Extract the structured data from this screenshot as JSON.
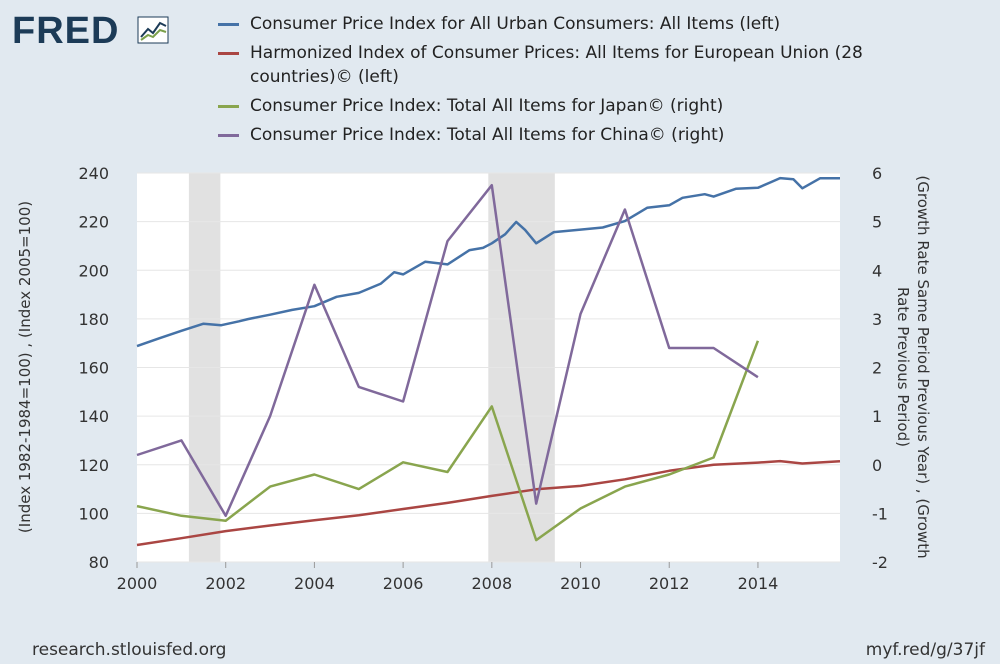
{
  "brand": {
    "logo_text": "FRED"
  },
  "footer": {
    "source": "research.stlouisfed.org",
    "link": "myf.red/g/37jf"
  },
  "colors": {
    "background": "#e1e9f0",
    "plot_bg": "#ffffff",
    "recession": "#e1e1e1",
    "us_cpi": "#4572a7",
    "eu_hicp": "#aa4643",
    "japan_cpi": "#89a54e",
    "china_cpi": "#80699b"
  },
  "chart_data": {
    "type": "line",
    "x_axis": {
      "ticks": [
        "2000",
        "2002",
        "2004",
        "2006",
        "2008",
        "2010",
        "2012",
        "2014"
      ],
      "range": [
        2000,
        2015.85
      ]
    },
    "y_left": {
      "label": "(Index 1982-1984=100) , (Index 2005=100)",
      "range": [
        80,
        240
      ],
      "ticks": [
        "80",
        "100",
        "120",
        "140",
        "160",
        "180",
        "200",
        "220",
        "240"
      ]
    },
    "y_right": {
      "label_line1": "(Growth Rate Same Period Previous Year) , (Growth",
      "label_line2": "Rate Previous Period)",
      "range": [
        -2,
        6
      ],
      "ticks": [
        "-2",
        "-1",
        "0",
        "1",
        "2",
        "3",
        "4",
        "5",
        "6"
      ]
    },
    "recessions": [
      [
        2001.17,
        2001.88
      ],
      [
        2007.92,
        2009.42
      ]
    ],
    "series": [
      {
        "name": "Consumer Price Index for All Urban Consumers: All Items (left)",
        "axis": "left",
        "color": "#4572a7",
        "points": [
          [
            2000.0,
            168.8
          ],
          [
            2000.5,
            172.0
          ],
          [
            2001.0,
            175.1
          ],
          [
            2001.5,
            178.0
          ],
          [
            2001.9,
            177.4
          ],
          [
            2002.3,
            179.0
          ],
          [
            2002.5,
            179.9
          ],
          [
            2003.0,
            181.7
          ],
          [
            2003.5,
            183.7
          ],
          [
            2004.0,
            185.2
          ],
          [
            2004.5,
            189.1
          ],
          [
            2005.0,
            190.7
          ],
          [
            2005.5,
            194.5
          ],
          [
            2005.8,
            199.2
          ],
          [
            2006.0,
            198.3
          ],
          [
            2006.5,
            203.5
          ],
          [
            2007.0,
            202.4
          ],
          [
            2007.5,
            208.3
          ],
          [
            2007.8,
            209.2
          ],
          [
            2008.0,
            211.1
          ],
          [
            2008.3,
            214.8
          ],
          [
            2008.55,
            219.9
          ],
          [
            2008.75,
            216.6
          ],
          [
            2009.0,
            211.1
          ],
          [
            2009.4,
            215.7
          ],
          [
            2010.0,
            216.7
          ],
          [
            2010.5,
            217.6
          ],
          [
            2011.0,
            220.2
          ],
          [
            2011.5,
            225.7
          ],
          [
            2012.0,
            226.7
          ],
          [
            2012.3,
            229.8
          ],
          [
            2012.8,
            231.3
          ],
          [
            2013.0,
            230.3
          ],
          [
            2013.5,
            233.5
          ],
          [
            2014.0,
            233.9
          ],
          [
            2014.3,
            236.3
          ],
          [
            2014.5,
            237.9
          ],
          [
            2014.8,
            237.4
          ],
          [
            2015.0,
            233.7
          ],
          [
            2015.4,
            237.8
          ],
          [
            2015.85,
            237.8
          ]
        ]
      },
      {
        "name": "Harmonized Index of Consumer Prices: All Items for European Union (28 countries)© (left)",
        "axis": "left",
        "color": "#aa4643",
        "points": [
          [
            2000.0,
            87.0
          ],
          [
            2001.0,
            89.8
          ],
          [
            2002.0,
            92.7
          ],
          [
            2003.0,
            95.0
          ],
          [
            2004.0,
            97.2
          ],
          [
            2005.0,
            99.2
          ],
          [
            2006.0,
            101.8
          ],
          [
            2007.0,
            104.3
          ],
          [
            2008.0,
            107.2
          ],
          [
            2009.0,
            109.9
          ],
          [
            2010.0,
            111.3
          ],
          [
            2011.0,
            114.0
          ],
          [
            2012.0,
            117.5
          ],
          [
            2013.0,
            120.0
          ],
          [
            2014.0,
            120.9
          ],
          [
            2014.5,
            121.5
          ],
          [
            2015.0,
            120.5
          ],
          [
            2015.85,
            121.4
          ]
        ]
      },
      {
        "name": "Consumer Price Index: Total All Items for Japan© (right)",
        "axis": "right",
        "color": "#89a54e",
        "points": [
          [
            2000,
            -0.85
          ],
          [
            2001,
            -1.05
          ],
          [
            2002,
            -1.15
          ],
          [
            2003,
            -0.45
          ],
          [
            2004,
            -0.2
          ],
          [
            2005,
            -0.5
          ],
          [
            2006,
            0.05
          ],
          [
            2007,
            -0.15
          ],
          [
            2008,
            1.2
          ],
          [
            2009,
            -1.55
          ],
          [
            2010,
            -0.9
          ],
          [
            2011,
            -0.45
          ],
          [
            2012,
            -0.2
          ],
          [
            2013,
            0.15
          ],
          [
            2014,
            2.55
          ]
        ]
      },
      {
        "name": "Consumer Price Index: Total All Items for China© (right)",
        "axis": "right",
        "color": "#80699b",
        "points": [
          [
            2000,
            0.2
          ],
          [
            2001,
            0.5
          ],
          [
            2002,
            -1.05
          ],
          [
            2003,
            1.0
          ],
          [
            2004,
            3.7
          ],
          [
            2005,
            1.6
          ],
          [
            2006,
            1.3
          ],
          [
            2007,
            4.6
          ],
          [
            2008,
            5.75
          ],
          [
            2009,
            -0.8
          ],
          [
            2010,
            3.1
          ],
          [
            2011,
            5.25
          ],
          [
            2012,
            2.4
          ],
          [
            2013,
            2.4
          ],
          [
            2014,
            1.8
          ]
        ]
      }
    ]
  }
}
